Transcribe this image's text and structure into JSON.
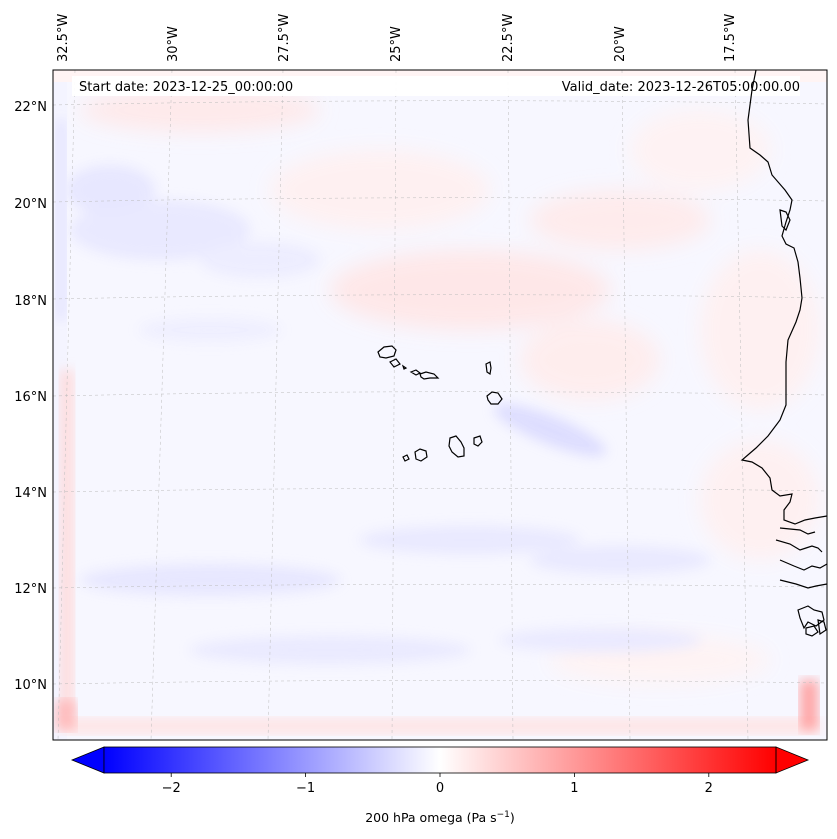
{
  "map": {
    "start_date_label": "Start date: 2023-12-25_00:00:00",
    "valid_date_label": "Valid_date: 2023-12-26T05:00:00.00",
    "lon_labels": [
      "32.5°W",
      "30°W",
      "27.5°W",
      "25°W",
      "22.5°W",
      "20°W",
      "17.5°W"
    ],
    "lat_labels": [
      "22°N",
      "20°N",
      "18°N",
      "16°N",
      "14°N",
      "12°N",
      "10°N"
    ]
  },
  "colorbar": {
    "label": "200 hPa omega (Pa s",
    "label_exp": "−1",
    "label_close": ")",
    "ticks": [
      "−2",
      "−1",
      "0",
      "1",
      "2"
    ],
    "tick_values": [
      -2,
      -1,
      0,
      1,
      2
    ],
    "range": [
      -2.5,
      2.5
    ],
    "colors": {
      "min": "#0000ff",
      "mid": "#ffffff",
      "max": "#ff0000"
    }
  }
}
